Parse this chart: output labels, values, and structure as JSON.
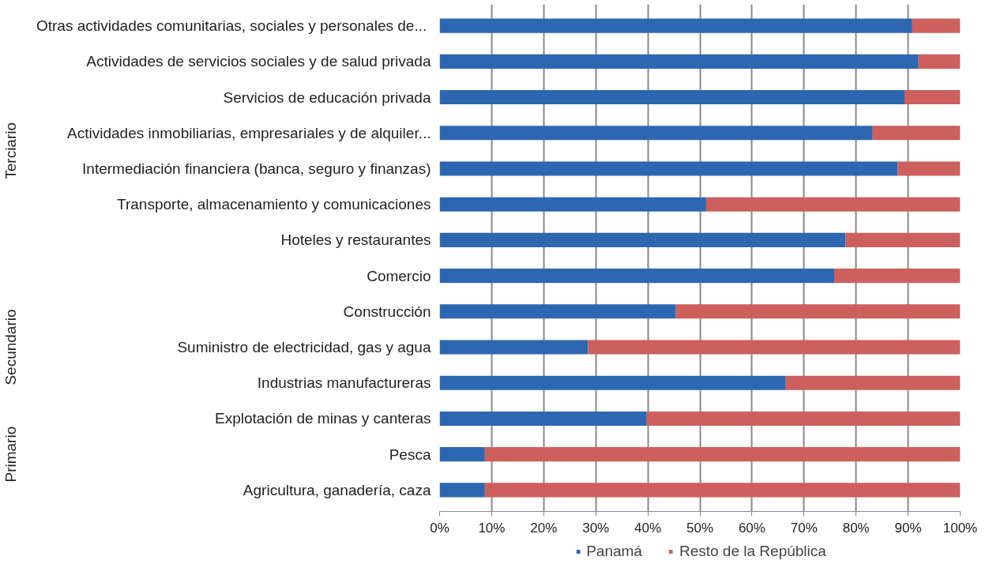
{
  "chart_data": {
    "type": "bar",
    "orientation": "horizontal",
    "stacked": true,
    "categories": [
      "Otras actividades comunitarias, sociales  y personales de...",
      "Actividades de servicios sociales y de salud privada",
      "Servicios de educación privada",
      "Actividades inmobiliarias, empresariales y de alquiler...",
      "Intermediación financiera (banca, seguro y finanzas)",
      "Transporte, almacenamiento y comunicaciones",
      "Hoteles y restaurantes",
      "Comercio",
      "Construcción",
      "Suministro de electricidad, gas y agua",
      "Industrias manufactureras",
      "Explotación de minas y canteras",
      "Pesca",
      "Agricultura, ganadería, caza"
    ],
    "series": [
      {
        "name": "Panamá",
        "color": "#2e67b1",
        "values": [
          90.8,
          92.0,
          89.3,
          83.2,
          88.0,
          51.2,
          78.0,
          75.8,
          45.4,
          28.5,
          66.5,
          39.8,
          8.7,
          8.7
        ]
      },
      {
        "name": "Resto de la República",
        "color": "#cd5f5d",
        "values": [
          9.2,
          8.0,
          10.7,
          16.8,
          12.0,
          48.8,
          22.0,
          24.2,
          54.6,
          71.5,
          33.5,
          60.2,
          91.3,
          91.3
        ]
      }
    ],
    "xlim": [
      0,
      100
    ],
    "xticks": [
      {
        "value": 0,
        "label": "0%"
      },
      {
        "value": 10,
        "label": "10%"
      },
      {
        "value": 20,
        "label": "20%"
      },
      {
        "value": 30,
        "label": "30%"
      },
      {
        "value": 40,
        "label": "40%"
      },
      {
        "value": 50,
        "label": "50%"
      },
      {
        "value": 60,
        "label": "60%"
      },
      {
        "value": 70,
        "label": "70%"
      },
      {
        "value": 80,
        "label": "80%"
      },
      {
        "value": 90,
        "label": "90%"
      },
      {
        "value": 100,
        "label": "100%"
      }
    ],
    "annotations": [
      "Terciario",
      "Secundario",
      "Primario"
    ],
    "grid": "x",
    "legend": "bottom"
  }
}
